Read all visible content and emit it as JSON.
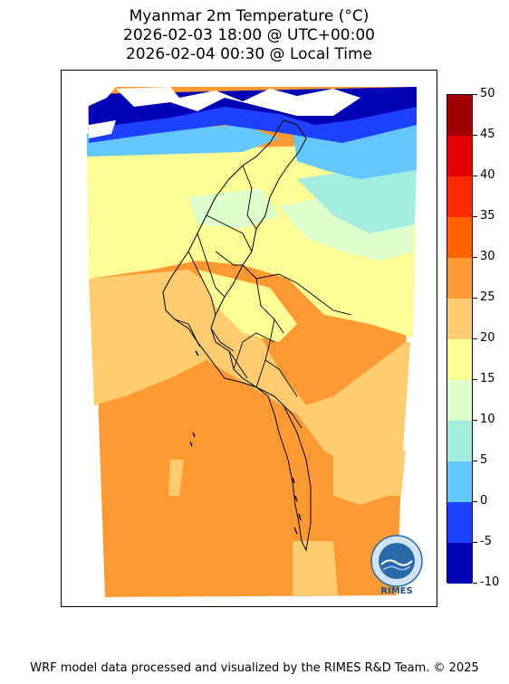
{
  "title": {
    "line1": "Myanmar 2m Temperature (°C)",
    "line2": "2026-02-03 18:00 @ UTC+00:00",
    "line3": "2026-02-04 00:30 @ Local Time"
  },
  "colorbar": {
    "ticks": [
      "50",
      "45",
      "40",
      "35",
      "30",
      "25",
      "20",
      "15",
      "10",
      "5",
      "0",
      "-5",
      "-10"
    ],
    "colors": [
      "#a00000",
      "#e40000",
      "#ff2a00",
      "#ff6200",
      "#ff9a32",
      "#ffcc70",
      "#fdfd96",
      "#dcffcb",
      "#a3ece0",
      "#64c8ff",
      "#1e40ff",
      "#0000b4"
    ]
  },
  "logo": {
    "text": "RIMES"
  },
  "footer": "WRF model data processed and visualized by the RIMES R&D Team. © 2025"
}
